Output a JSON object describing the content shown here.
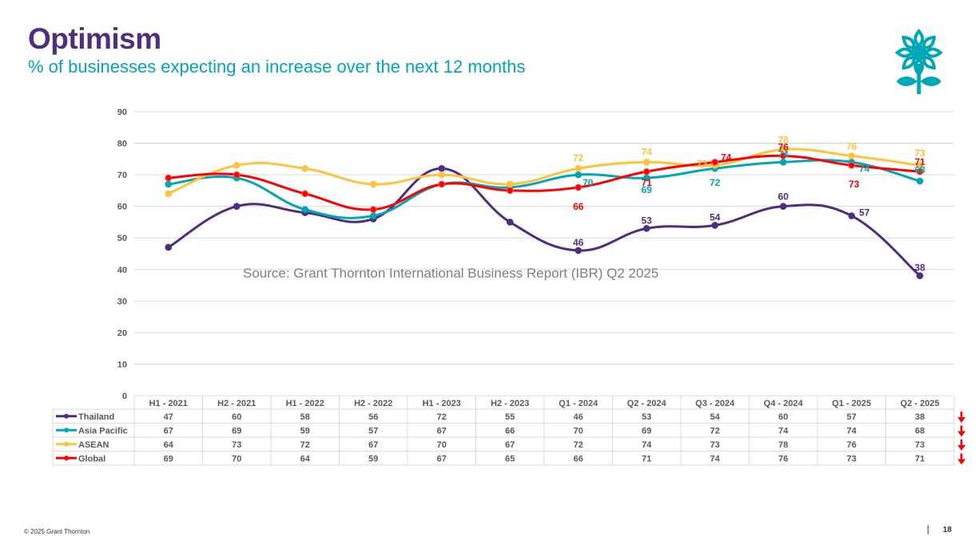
{
  "header": {
    "title": "Optimism",
    "subtitle": "% of businesses expecting an increase over the next 12 months"
  },
  "logo": {
    "icon": "flower-icon",
    "color": "#00a7b5"
  },
  "footer": {
    "copyright": "© 2025  Grant Thornton",
    "page_number": "18"
  },
  "chart_data": {
    "type": "line",
    "title": "Optimism",
    "subtitle": "% of businesses expecting an increase over the next 12 months",
    "annotation": "Source: Grant Thornton International Business Report (IBR) Q2 2025",
    "xlabel": "",
    "ylabel": "",
    "ylim": [
      0,
      90
    ],
    "yticks": [
      0,
      10,
      20,
      30,
      40,
      50,
      60,
      70,
      80,
      90
    ],
    "grid": true,
    "legend": "data-table",
    "smooth": true,
    "categories": [
      "H1 - 2021",
      "H2 - 2021",
      "H1 - 2022",
      "H2 - 2022",
      "H1 - 2023",
      "H2 - 2023",
      "Q1 - 2024",
      "Q2 - 2024",
      "Q3 - 2024",
      "Q4 - 2024",
      "Q1 - 2025",
      "Q2 - 2025"
    ],
    "series": [
      {
        "name": "Thailand",
        "color": "#4f2d7f",
        "values": [
          47,
          60,
          58,
          56,
          72,
          55,
          46,
          53,
          54,
          60,
          57,
          38
        ],
        "trend": "down"
      },
      {
        "name": "Asia Pacific",
        "color": "#00a7b5",
        "values": [
          67,
          69,
          59,
          57,
          67,
          66,
          70,
          69,
          72,
          74,
          74,
          68
        ],
        "trend": "down"
      },
      {
        "name": "ASEAN",
        "color": "#ffc23d",
        "values": [
          64,
          73,
          72,
          67,
          70,
          67,
          72,
          74,
          73,
          78,
          76,
          73
        ],
        "trend": "down"
      },
      {
        "name": "Global",
        "color": "#ff0000",
        "values": [
          69,
          70,
          64,
          59,
          67,
          65,
          66,
          71,
          74,
          76,
          73,
          71
        ],
        "trend": "down"
      }
    ],
    "data_labels_from_index": 6
  }
}
